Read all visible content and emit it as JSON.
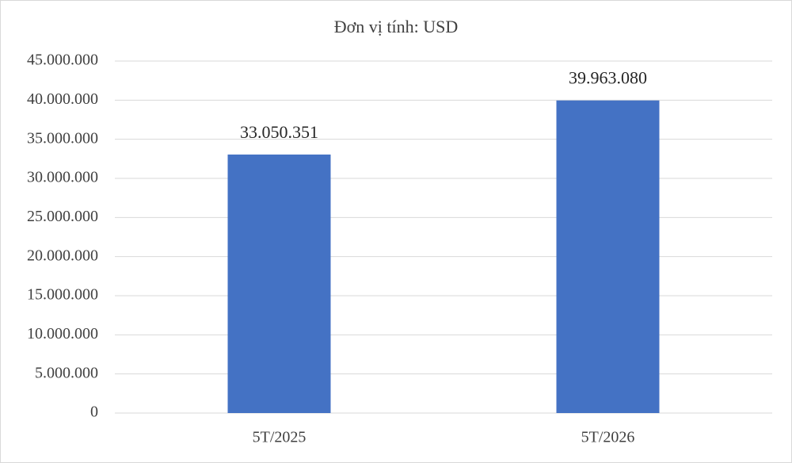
{
  "chart_data": {
    "type": "bar",
    "title": "Đơn vị tính: USD",
    "categories": [
      "5T/2025",
      "5T/2026"
    ],
    "values": [
      33050351,
      39963080
    ],
    "value_labels": [
      "33.050.351",
      "39.963.080"
    ],
    "color": "#4472c4",
    "ylim": [
      0,
      45000000
    ],
    "yticks": [
      0,
      {
        "value": 5000000,
        "label": "5.000.000"
      },
      {
        "value": 10000000,
        "label": "10.000.000"
      },
      {
        "value": 15000000,
        "label": "15.000.000"
      },
      {
        "value": 20000000,
        "label": "20.000.000"
      },
      {
        "value": 25000000,
        "label": "25.000.000"
      },
      {
        "value": 30000000,
        "label": "30.000.000"
      },
      {
        "value": 35000000,
        "label": "35.000.000"
      },
      {
        "value": 40000000,
        "label": "40.000.000"
      },
      {
        "value": 45000000,
        "label": "45.000.000"
      }
    ],
    "grid": true
  }
}
